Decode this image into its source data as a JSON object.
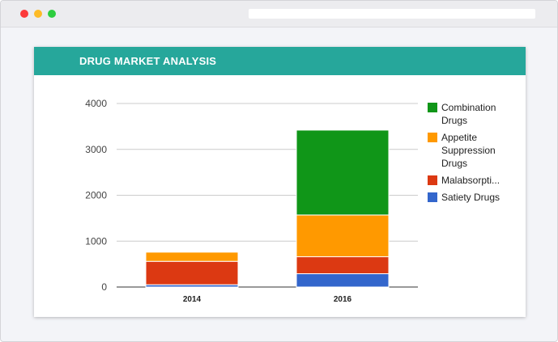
{
  "card": {
    "title": "DRUG MARKET ANALYSIS"
  },
  "chart_data": {
    "type": "bar",
    "stacked": true,
    "categories": [
      "2014",
      "2016"
    ],
    "series": [
      {
        "name": "Satiety Drugs",
        "color": "#3366cc",
        "values": [
          50,
          290
        ]
      },
      {
        "name": "Malabsorpti...",
        "color": "#dc3912",
        "values": [
          510,
          370
        ]
      },
      {
        "name": "Appetite Suppression Drugs",
        "color": "#ff9900",
        "values": [
          200,
          910
        ]
      },
      {
        "name": "Combination Drugs",
        "color": "#109618",
        "values": [
          0,
          1850
        ]
      }
    ],
    "legend_order": [
      "Combination Drugs",
      "Appetite Suppression Drugs",
      "Malabsorpti...",
      "Satiety Drugs"
    ],
    "yticks": [
      0,
      1000,
      2000,
      3000,
      4000
    ],
    "ylim": [
      0,
      4000
    ],
    "grid": true,
    "legend_position": "right"
  }
}
